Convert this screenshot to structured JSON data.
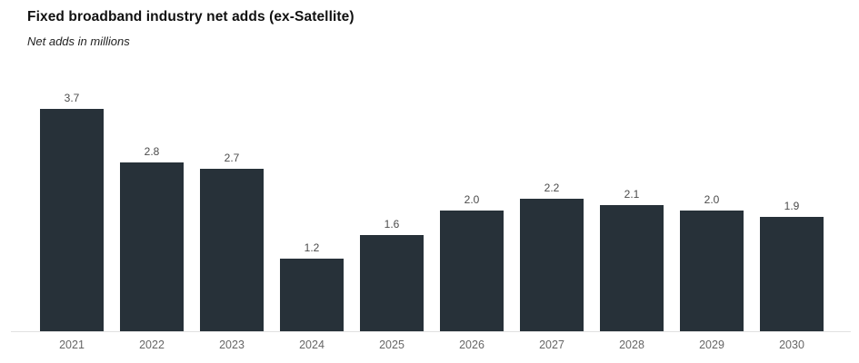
{
  "chart_data": {
    "type": "bar",
    "title": "Fixed broadband industry net adds (ex-Satellite)",
    "subtitle": "Net adds in millions",
    "categories": [
      "2021",
      "2022",
      "2023",
      "2024",
      "2025",
      "2026",
      "2027",
      "2028",
      "2029",
      "2030"
    ],
    "values": [
      3.7,
      2.8,
      2.7,
      1.2,
      1.6,
      2.0,
      2.2,
      2.1,
      2.0,
      1.9
    ],
    "value_labels": [
      "3.7",
      "2.8",
      "2.7",
      "1.2",
      "1.6",
      "2.0",
      "2.2",
      "2.1",
      "2.0",
      "1.9"
    ],
    "xlabel": "",
    "ylabel": "",
    "ylim": [
      0,
      4.15
    ],
    "grid": false,
    "legend": false,
    "data_labels_position": "above-bars",
    "colors": {
      "bar": "#273139",
      "axis_line": "#e1e1e1",
      "value_label": "#4b4b4b",
      "tick_label": "#666666",
      "title": "#111111",
      "subtitle": "#222222",
      "background": "#ffffff"
    }
  }
}
